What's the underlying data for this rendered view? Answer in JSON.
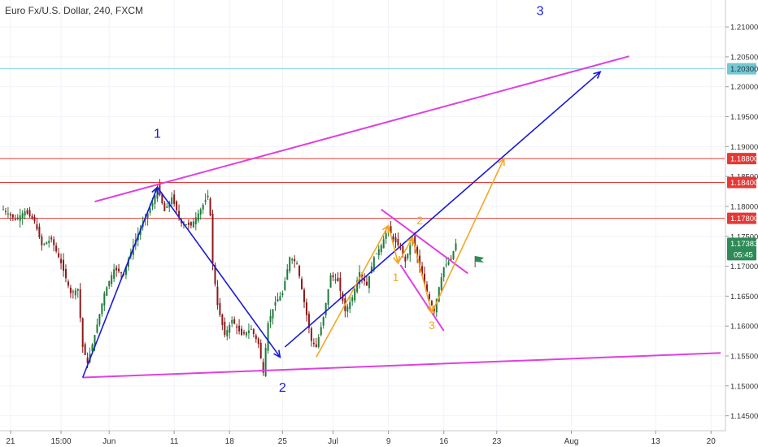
{
  "title": "Euro Fx/U.S. Dollar, 240, FXCM",
  "colors": {
    "up": "#1f7a3a",
    "down": "#8b1a1a",
    "magenta": "#e040e0",
    "blue": "#1a1ad6",
    "orange": "#f5a623",
    "red_line": "#e53935",
    "cyan_line": "#7fd3e0",
    "price_tag": "#2e8b57",
    "red_tag": "#e53935",
    "cyan_tag": "#76c7d4",
    "axis_text": "#333333",
    "grid": "#f0f3fa"
  },
  "chart_data": {
    "type": "candlestick",
    "symbol": "Euro Fx/U.S. Dollar",
    "timeframe": "240",
    "source": "FXCM",
    "ylim": [
      1.1425,
      1.2145
    ],
    "y_ticks": [
      1.145,
      1.15,
      1.155,
      1.16,
      1.165,
      1.17,
      1.175,
      1.18,
      1.185,
      1.19,
      1.195,
      1.2,
      1.205,
      1.21
    ],
    "y_tick_labels": [
      "1.14500",
      "1.15000",
      "1.15500",
      "1.16000",
      "1.16500",
      "1.17000",
      "1.17500",
      "1.18000",
      "1.18500",
      "1.19000",
      "1.19500",
      "1.20000",
      "1.20500",
      "1.21000"
    ],
    "x_ticks": [
      {
        "label": "21",
        "bar": 3
      },
      {
        "label": "15:00",
        "bar": 24
      },
      {
        "label": "Jun",
        "bar": 44
      },
      {
        "label": "11",
        "bar": 71
      },
      {
        "label": "18",
        "bar": 94
      },
      {
        "label": "25",
        "bar": 116
      },
      {
        "label": "Jul",
        "bar": 137
      },
      {
        "label": "9",
        "bar": 160
      },
      {
        "label": "16",
        "bar": 183
      },
      {
        "label": "23",
        "bar": 205
      },
      {
        "label": "Aug",
        "bar": 236
      },
      {
        "label": "13",
        "bar": 271
      },
      {
        "label": "20",
        "bar": 294
      }
    ],
    "price_path": [
      {
        "bar": 0,
        "price": 1.1795
      },
      {
        "bar": 5,
        "price": 1.1778
      },
      {
        "bar": 9,
        "price": 1.1792
      },
      {
        "bar": 13,
        "price": 1.1775
      },
      {
        "bar": 16,
        "price": 1.1735
      },
      {
        "bar": 20,
        "price": 1.1745
      },
      {
        "bar": 24,
        "price": 1.1705
      },
      {
        "bar": 28,
        "price": 1.1655
      },
      {
        "bar": 31,
        "price": 1.1662
      },
      {
        "bar": 33,
        "price": 1.1565
      },
      {
        "bar": 35,
        "price": 1.1538
      },
      {
        "bar": 38,
        "price": 1.1585
      },
      {
        "bar": 42,
        "price": 1.1655
      },
      {
        "bar": 46,
        "price": 1.1695
      },
      {
        "bar": 50,
        "price": 1.1688
      },
      {
        "bar": 54,
        "price": 1.1735
      },
      {
        "bar": 58,
        "price": 1.1772
      },
      {
        "bar": 62,
        "price": 1.1805
      },
      {
        "bar": 64,
        "price": 1.1832
      },
      {
        "bar": 67,
        "price": 1.1792
      },
      {
        "bar": 70,
        "price": 1.1815
      },
      {
        "bar": 74,
        "price": 1.1772
      },
      {
        "bar": 78,
        "price": 1.1768
      },
      {
        "bar": 82,
        "price": 1.1795
      },
      {
        "bar": 85,
        "price": 1.1818
      },
      {
        "bar": 86,
        "price": 1.1785
      },
      {
        "bar": 87,
        "price": 1.1705
      },
      {
        "bar": 89,
        "price": 1.1635
      },
      {
        "bar": 92,
        "price": 1.1585
      },
      {
        "bar": 95,
        "price": 1.161
      },
      {
        "bar": 99,
        "price": 1.1585
      },
      {
        "bar": 103,
        "price": 1.1595
      },
      {
        "bar": 106,
        "price": 1.157
      },
      {
        "bar": 108,
        "price": 1.1522
      },
      {
        "bar": 110,
        "price": 1.1605
      },
      {
        "bar": 113,
        "price": 1.164
      },
      {
        "bar": 116,
        "price": 1.1655
      },
      {
        "bar": 119,
        "price": 1.1715
      },
      {
        "bar": 122,
        "price": 1.1705
      },
      {
        "bar": 125,
        "price": 1.164
      },
      {
        "bar": 128,
        "price": 1.1575
      },
      {
        "bar": 130,
        "price": 1.1565
      },
      {
        "bar": 133,
        "price": 1.1615
      },
      {
        "bar": 136,
        "price": 1.1685
      },
      {
        "bar": 139,
        "price": 1.1675
      },
      {
        "bar": 142,
        "price": 1.1625
      },
      {
        "bar": 145,
        "price": 1.1648
      },
      {
        "bar": 148,
        "price": 1.169
      },
      {
        "bar": 151,
        "price": 1.1668
      },
      {
        "bar": 154,
        "price": 1.1715
      },
      {
        "bar": 157,
        "price": 1.1735
      },
      {
        "bar": 160,
        "price": 1.1765
      },
      {
        "bar": 162,
        "price": 1.1745
      },
      {
        "bar": 165,
        "price": 1.173
      },
      {
        "bar": 167,
        "price": 1.1708
      },
      {
        "bar": 170,
        "price": 1.1748
      },
      {
        "bar": 173,
        "price": 1.1698
      },
      {
        "bar": 175,
        "price": 1.167
      },
      {
        "bar": 177,
        "price": 1.1645
      },
      {
        "bar": 179,
        "price": 1.1625
      },
      {
        "bar": 181,
        "price": 1.1665
      },
      {
        "bar": 183,
        "price": 1.1698
      },
      {
        "bar": 186,
        "price": 1.1712
      },
      {
        "bar": 188,
        "price": 1.1738
      }
    ],
    "last_bar": 188,
    "horizontal_lines": [
      {
        "price": 1.203,
        "label": "1.20300",
        "color": "cyan"
      },
      {
        "price": 1.188,
        "label": "1.18800",
        "color": "red"
      },
      {
        "price": 1.184,
        "label": "1.18400",
        "color": "red"
      },
      {
        "price": 1.178,
        "label": "1.17800",
        "color": "red"
      }
    ],
    "last_price": {
      "price": 1.17383,
      "label": "1.17383",
      "countdown": "05:45"
    },
    "trend_lines": [
      {
        "color": "magenta",
        "from": {
          "bar": 38,
          "price": 1.1808
        },
        "to": {
          "bar": 260,
          "price": 1.2051
        }
      },
      {
        "color": "magenta",
        "from": {
          "bar": 33,
          "price": 1.1514
        },
        "to": {
          "bar": 298,
          "price": 1.1555
        }
      },
      {
        "color": "magenta",
        "from": {
          "bar": 157,
          "price": 1.1795
        },
        "to": {
          "bar": 193,
          "price": 1.1688
        }
      },
      {
        "color": "magenta",
        "from": {
          "bar": 165,
          "price": 1.1702
        },
        "to": {
          "bar": 183,
          "price": 1.1592
        }
      }
    ],
    "wave_arrows": [
      {
        "color": "blue",
        "from": {
          "bar": 33,
          "price": 1.1514
        },
        "to": {
          "bar": 64,
          "price": 1.1832
        }
      },
      {
        "color": "blue",
        "from": {
          "bar": 64,
          "price": 1.1832
        },
        "to": {
          "bar": 115,
          "price": 1.1548
        }
      },
      {
        "color": "blue",
        "from": {
          "bar": 117,
          "price": 1.1565
        },
        "to": {
          "bar": 248,
          "price": 1.2025
        }
      },
      {
        "color": "orange",
        "from": {
          "bar": 130,
          "price": 1.1548
        },
        "to": {
          "bar": 160,
          "price": 1.1768
        }
      },
      {
        "color": "orange",
        "from": {
          "bar": 160,
          "price": 1.1768
        },
        "to": {
          "bar": 164,
          "price": 1.1705
        }
      },
      {
        "color": "orange",
        "from": {
          "bar": 164,
          "price": 1.1705
        },
        "to": {
          "bar": 170,
          "price": 1.1748
        }
      },
      {
        "color": "orange",
        "from": {
          "bar": 170,
          "price": 1.1748
        },
        "to": {
          "bar": 178,
          "price": 1.1622
        }
      },
      {
        "color": "orange",
        "from": {
          "bar": 178,
          "price": 1.1622
        },
        "to": {
          "bar": 208,
          "price": 1.188
        }
      }
    ],
    "annotations": [
      {
        "text": "1",
        "color": "blue",
        "bar": 64,
        "price": 1.1915
      },
      {
        "text": "2",
        "color": "blue",
        "bar": 116,
        "price": 1.149
      },
      {
        "text": "3",
        "color": "blue",
        "bar": 223,
        "price": 1.212
      },
      {
        "text": "1",
        "color": "orange",
        "bar": 163,
        "price": 1.1675
      },
      {
        "text": "2",
        "color": "orange",
        "bar": 173,
        "price": 1.177
      },
      {
        "text": "3",
        "color": "orange",
        "bar": 178,
        "price": 1.1595
      }
    ],
    "flag": {
      "bar": 196,
      "price": 1.1698
    }
  }
}
